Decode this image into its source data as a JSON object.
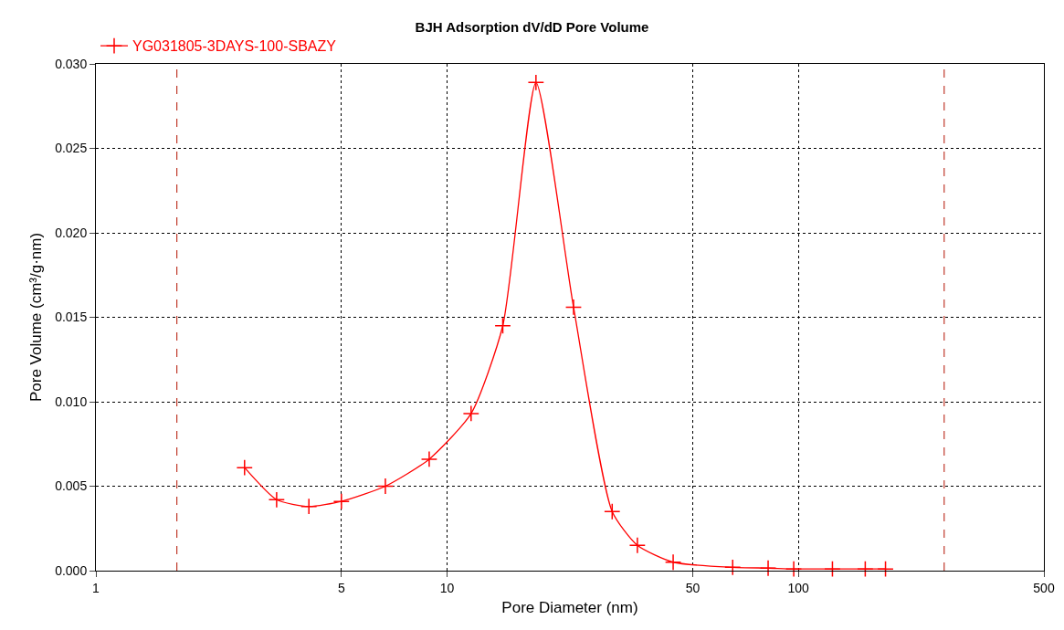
{
  "chart_data": {
    "type": "line",
    "title": "BJH Adsorption dV/dD Pore Volume",
    "xlabel": "Pore Diameter (nm)",
    "ylabel": "Pore Volume (cm³/g·nm)",
    "log": "x",
    "xlim": [
      1,
      500
    ],
    "xticks": [
      1,
      5,
      10,
      50,
      100,
      500
    ],
    "ylim": [
      0,
      0.03
    ],
    "yticks": [
      {
        "value": 0,
        "label": "0.000"
      },
      {
        "value": 0.005,
        "label": "0.005"
      },
      {
        "value": 0.01,
        "label": "0.010"
      },
      {
        "value": 0.015,
        "label": "0.015"
      },
      {
        "value": 0.02,
        "label": "0.020"
      },
      {
        "value": 0.025,
        "label": "0.025"
      },
      {
        "value": 0.03,
        "label": "0.030"
      }
    ],
    "grid": true,
    "legend": "top left",
    "marker": "cross",
    "line_style": "solid",
    "ref_lines": [
      {
        "axis": "x",
        "value": 1.7,
        "color": "#c0392b",
        "line_style": "dashed"
      },
      {
        "axis": "x",
        "value": 260,
        "color": "#c0392b",
        "line_style": "dashed"
      }
    ],
    "series": [
      {
        "name": "YG031805-3DAYS-100-SBAZY",
        "color": "#ff0000",
        "x": [
          2.65,
          3.27,
          4.04,
          5.0,
          6.67,
          8.89,
          11.7,
          14.4,
          17.9,
          22.9,
          29.5,
          34.8,
          44,
          65,
          82,
          97,
          125,
          155,
          177
        ],
        "values": [
          0.0061,
          0.0042,
          0.0038,
          0.0041,
          0.005,
          0.0066,
          0.0093,
          0.0145,
          0.0289,
          0.0156,
          0.0035,
          0.0015,
          0.0005,
          0.0002,
          0.00015,
          0.0001,
          0.0001,
          0.0001,
          0.0001
        ]
      }
    ]
  }
}
